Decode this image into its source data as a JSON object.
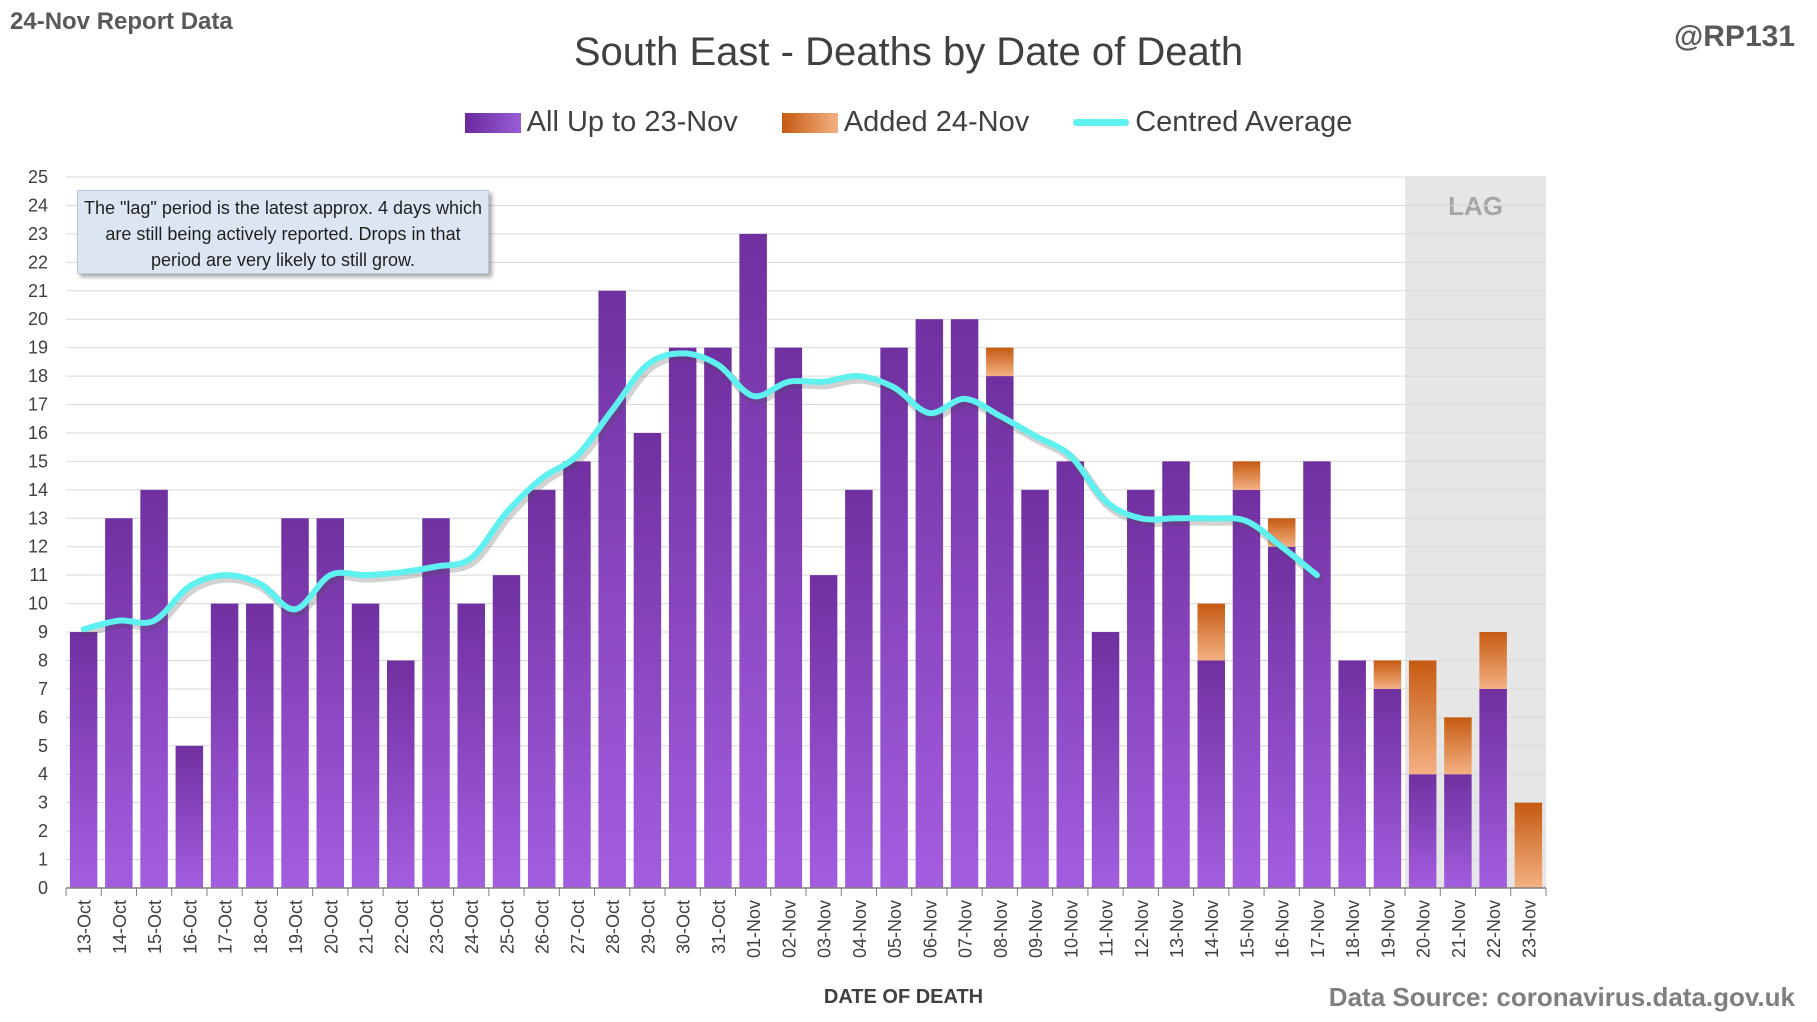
{
  "header": {
    "report_label": "24-Nov Report Data",
    "author": "@RP131"
  },
  "footer": {
    "source": "Data Source: coronavirus.data.gov.uk"
  },
  "annotation": {
    "note": "The \"lag\" period is the latest approx. 4 days which are still being actively reported.  Drops in that period are very likely to still grow.",
    "lag_label": "LAG"
  },
  "colors": {
    "existing": "#7030a0",
    "added": "#e07a2f",
    "average": "#5ff0f0",
    "lag_shade": "#e6e6e6"
  },
  "chart_data": {
    "type": "bar",
    "title": "South East - Deaths by Date of Death",
    "xlabel": "DATE OF DEATH",
    "ylabel": "",
    "ylim": [
      0,
      25
    ],
    "yticks": [
      0,
      1,
      2,
      3,
      4,
      5,
      6,
      7,
      8,
      9,
      10,
      11,
      12,
      13,
      14,
      15,
      16,
      17,
      18,
      19,
      20,
      21,
      22,
      23,
      24,
      25
    ],
    "grid": true,
    "legend_position": "top",
    "stacked": true,
    "lag_start_category": "20-Nov",
    "categories": [
      "13-Oct",
      "14-Oct",
      "15-Oct",
      "16-Oct",
      "17-Oct",
      "18-Oct",
      "19-Oct",
      "20-Oct",
      "21-Oct",
      "22-Oct",
      "23-Oct",
      "24-Oct",
      "25-Oct",
      "26-Oct",
      "27-Oct",
      "28-Oct",
      "29-Oct",
      "30-Oct",
      "31-Oct",
      "01-Nov",
      "02-Nov",
      "03-Nov",
      "04-Nov",
      "05-Nov",
      "06-Nov",
      "07-Nov",
      "08-Nov",
      "09-Nov",
      "10-Nov",
      "11-Nov",
      "12-Nov",
      "13-Nov",
      "14-Nov",
      "15-Nov",
      "16-Nov",
      "17-Nov",
      "18-Nov",
      "19-Nov",
      "20-Nov",
      "21-Nov",
      "22-Nov",
      "23-Nov"
    ],
    "series": [
      {
        "name": "All Up to 23-Nov",
        "values": [
          9,
          13,
          14,
          5,
          10,
          10,
          13,
          13,
          10,
          8,
          13,
          10,
          11,
          14,
          15,
          21,
          16,
          19,
          19,
          23,
          19,
          11,
          14,
          19,
          20,
          20,
          18,
          14,
          15,
          9,
          14,
          15,
          8,
          14,
          12,
          15,
          8,
          7,
          4,
          4,
          7,
          0
        ]
      },
      {
        "name": "Added 24-Nov",
        "values": [
          0,
          0,
          0,
          0,
          0,
          0,
          0,
          0,
          0,
          0,
          0,
          0,
          0,
          0,
          0,
          0,
          0,
          0,
          0,
          0,
          0,
          0,
          0,
          0,
          0,
          0,
          1,
          0,
          0,
          0,
          0,
          0,
          2,
          1,
          1,
          0,
          0,
          1,
          4,
          2,
          2,
          3
        ]
      },
      {
        "name": "Centred Average",
        "type": "line",
        "values": [
          9.1,
          9.4,
          9.4,
          10.6,
          11.0,
          10.7,
          9.8,
          11.0,
          11.0,
          11.1,
          11.3,
          11.6,
          13.2,
          14.4,
          15.2,
          16.8,
          18.4,
          18.8,
          18.4,
          17.3,
          17.8,
          17.8,
          18.0,
          17.6,
          16.7,
          17.2,
          16.6,
          15.9,
          15.2,
          13.6,
          13.0,
          13.0,
          13.0,
          12.9,
          12.0,
          11.0,
          null,
          null,
          null,
          null,
          null,
          null
        ]
      }
    ]
  }
}
